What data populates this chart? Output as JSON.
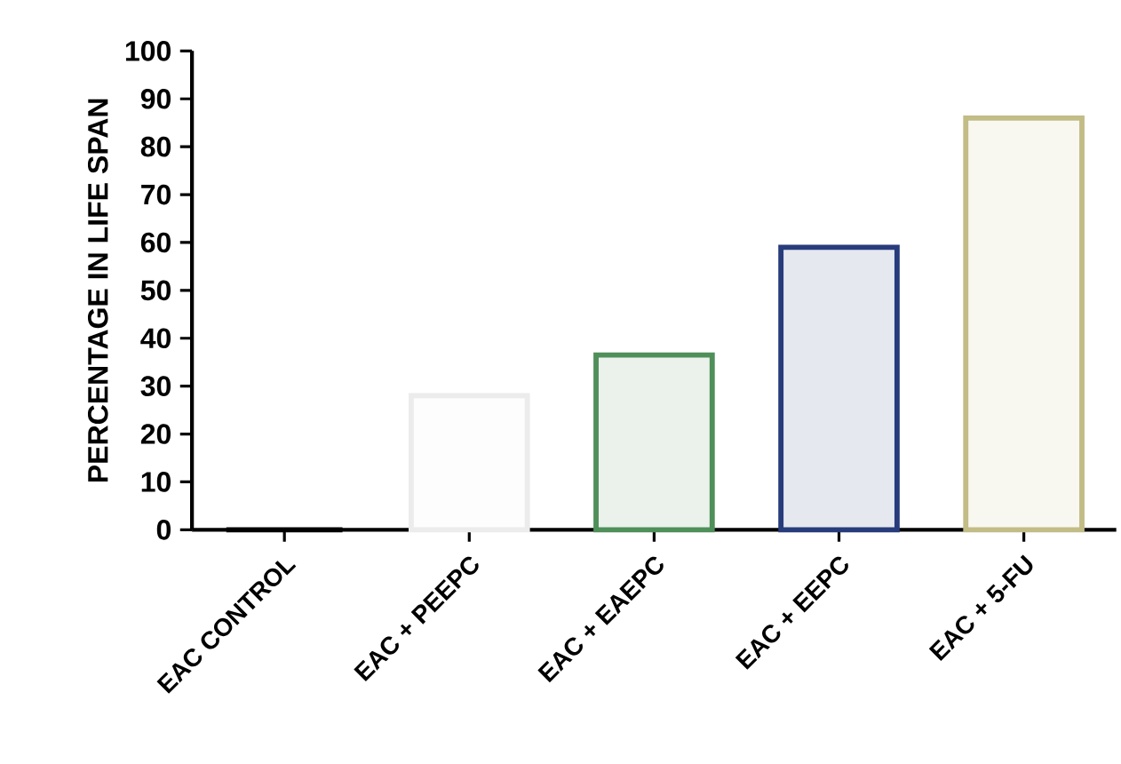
{
  "chart_data": {
    "type": "bar",
    "ylabel": "PERCENTAGE IN LIFE SPAN",
    "categories": [
      "EAC CONTROL",
      "EAC + PEEPC",
      "EAC + EAEPC",
      "EAC + EEPC",
      "EAC + 5-FU"
    ],
    "values": [
      0,
      28,
      36.5,
      59,
      86
    ],
    "colors": [
      "#000000",
      "#ececec",
      "#4f8f5a",
      "#283c7c",
      "#c2bc86"
    ],
    "ylim": [
      0,
      100
    ],
    "yticks": [
      0,
      10,
      20,
      30,
      40,
      50,
      60,
      70,
      80,
      90,
      100
    ]
  }
}
